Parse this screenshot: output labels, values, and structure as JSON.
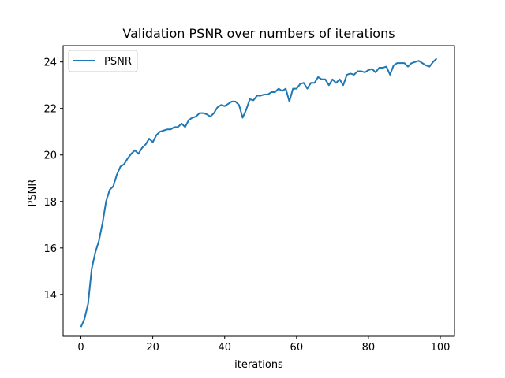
{
  "chart_data": {
    "type": "line",
    "title": "Validation PSNR over numbers of iterations",
    "xlabel": "iterations",
    "ylabel": "PSNR",
    "xlim": [
      -4.95,
      103.95
    ],
    "ylim": [
      12.2,
      24.7
    ],
    "xticks": [
      "0",
      "20",
      "40",
      "60",
      "80",
      "100"
    ],
    "yticks": [
      "14",
      "16",
      "18",
      "20",
      "22",
      "24"
    ],
    "grid": false,
    "legend_position": "top-left",
    "series": [
      {
        "name": "PSNR",
        "color": "#1f77b4",
        "x": [
          0,
          1,
          2,
          3,
          4,
          5,
          6,
          7,
          8,
          9,
          10,
          11,
          12,
          13,
          14,
          15,
          16,
          17,
          18,
          19,
          20,
          21,
          22,
          23,
          24,
          25,
          26,
          27,
          28,
          29,
          30,
          31,
          32,
          33,
          34,
          35,
          36,
          37,
          38,
          39,
          40,
          41,
          42,
          43,
          44,
          45,
          46,
          47,
          48,
          49,
          50,
          51,
          52,
          53,
          54,
          55,
          56,
          57,
          58,
          59,
          60,
          61,
          62,
          63,
          64,
          65,
          66,
          67,
          68,
          69,
          70,
          71,
          72,
          73,
          74,
          75,
          76,
          77,
          78,
          79,
          80,
          81,
          82,
          83,
          84,
          85,
          86,
          87,
          88,
          89,
          90,
          91,
          92,
          93,
          94,
          95,
          96,
          97,
          98,
          99
        ],
        "values": [
          12.6,
          12.95,
          13.6,
          15.1,
          15.8,
          16.3,
          17.05,
          18.0,
          18.5,
          18.65,
          19.15,
          19.5,
          19.6,
          19.85,
          20.05,
          20.2,
          20.05,
          20.3,
          20.45,
          20.7,
          20.55,
          20.85,
          21.0,
          21.05,
          21.1,
          21.1,
          21.2,
          21.2,
          21.35,
          21.2,
          21.5,
          21.6,
          21.65,
          21.8,
          21.8,
          21.75,
          21.65,
          21.8,
          22.05,
          22.15,
          22.1,
          22.2,
          22.3,
          22.3,
          22.15,
          21.6,
          21.95,
          22.4,
          22.35,
          22.55,
          22.55,
          22.6,
          22.6,
          22.7,
          22.7,
          22.85,
          22.75,
          22.85,
          22.3,
          22.85,
          22.85,
          23.05,
          23.1,
          22.85,
          23.1,
          23.1,
          23.35,
          23.25,
          23.25,
          23.0,
          23.25,
          23.1,
          23.25,
          23.0,
          23.45,
          23.5,
          23.45,
          23.6,
          23.6,
          23.55,
          23.65,
          23.7,
          23.55,
          23.75,
          23.75,
          23.8,
          23.45,
          23.85,
          23.95,
          23.95,
          23.95,
          23.8,
          23.95,
          24.0,
          24.05,
          23.95,
          23.85,
          23.8,
          24.0,
          24.15
        ]
      }
    ]
  }
}
